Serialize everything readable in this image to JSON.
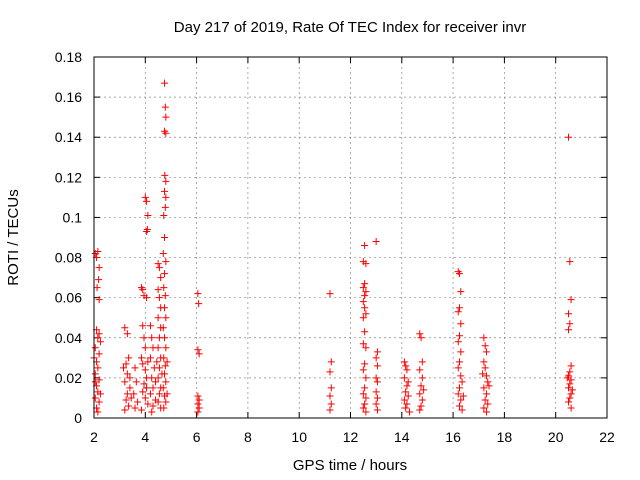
{
  "chart_data": {
    "type": "scatter",
    "title": "Day 217 of 2019, Rate Of TEC Index for receiver invr",
    "xlabel": "GPS time / hours",
    "ylabel": "ROTI / TECUs",
    "xlim": [
      2,
      22
    ],
    "ylim": [
      0,
      0.18
    ],
    "xticks": [
      2,
      4,
      6,
      8,
      10,
      12,
      14,
      16,
      18,
      20,
      22
    ],
    "yticks": [
      0,
      0.02,
      0.04,
      0.06,
      0.08,
      0.1,
      0.12,
      0.14,
      0.16,
      0.18
    ],
    "ytick_labels": [
      "0",
      "0.02",
      "0.04",
      "0.06",
      "0.08",
      "0.1",
      "0.12",
      "0.14",
      "0.16",
      "0.18"
    ],
    "grid": true,
    "marker": "+",
    "color": "#ff0000",
    "series": [
      {
        "name": "ROTI",
        "points": [
          [
            2.05,
            0.082
          ],
          [
            2.1,
            0.08
          ],
          [
            2.15,
            0.083
          ],
          [
            2.2,
            0.075
          ],
          [
            2.18,
            0.069
          ],
          [
            2.12,
            0.065
          ],
          [
            2.2,
            0.059
          ],
          [
            2.1,
            0.044
          ],
          [
            2.2,
            0.042
          ],
          [
            2.15,
            0.04
          ],
          [
            2.05,
            0.035
          ],
          [
            2.2,
            0.032
          ],
          [
            2.1,
            0.028
          ],
          [
            2.15,
            0.025
          ],
          [
            2.05,
            0.022
          ],
          [
            2.2,
            0.019
          ],
          [
            2.1,
            0.016
          ],
          [
            2.15,
            0.013
          ],
          [
            2.05,
            0.01
          ],
          [
            2.2,
            0.008
          ],
          [
            2.1,
            0.005
          ],
          [
            2.15,
            0.003
          ],
          [
            2.05,
            0.018
          ],
          [
            2.25,
            0.012
          ],
          [
            2.0,
            0.03
          ],
          [
            2.25,
            0.038
          ],
          [
            3.2,
            0.045
          ],
          [
            3.3,
            0.042
          ],
          [
            3.35,
            0.03
          ],
          [
            3.25,
            0.027
          ],
          [
            3.3,
            0.022
          ],
          [
            3.2,
            0.018
          ],
          [
            3.4,
            0.015
          ],
          [
            3.3,
            0.012
          ],
          [
            3.25,
            0.009
          ],
          [
            3.35,
            0.006
          ],
          [
            3.2,
            0.004
          ],
          [
            3.4,
            0.02
          ],
          [
            3.45,
            0.01
          ],
          [
            3.15,
            0.025
          ],
          [
            3.6,
            0.025
          ],
          [
            3.65,
            0.018
          ],
          [
            3.55,
            0.012
          ],
          [
            3.7,
            0.008
          ],
          [
            3.6,
            0.005
          ],
          [
            3.85,
            0.065
          ],
          [
            3.9,
            0.064
          ],
          [
            3.95,
            0.061
          ],
          [
            4.05,
            0.06
          ],
          [
            3.9,
            0.046
          ],
          [
            3.95,
            0.04
          ],
          [
            4.0,
            0.035
          ],
          [
            3.85,
            0.03
          ],
          [
            3.9,
            0.027
          ],
          [
            4.0,
            0.024
          ],
          [
            4.05,
            0.02
          ],
          [
            3.95,
            0.017
          ],
          [
            3.9,
            0.013
          ],
          [
            4.0,
            0.01
          ],
          [
            4.1,
            0.007
          ],
          [
            3.85,
            0.004
          ],
          [
            4.05,
            0.015
          ],
          [
            4.1,
            0.028
          ],
          [
            4.0,
            0.11
          ],
          [
            4.05,
            0.108
          ],
          [
            4.1,
            0.101
          ],
          [
            4.08,
            0.094
          ],
          [
            4.05,
            0.093
          ],
          [
            4.2,
            0.046
          ],
          [
            4.25,
            0.04
          ],
          [
            4.3,
            0.035
          ],
          [
            4.2,
            0.03
          ],
          [
            4.35,
            0.025
          ],
          [
            4.25,
            0.02
          ],
          [
            4.3,
            0.015
          ],
          [
            4.2,
            0.012
          ],
          [
            4.4,
            0.009
          ],
          [
            4.3,
            0.006
          ],
          [
            4.25,
            0.003
          ],
          [
            4.4,
            0.018
          ],
          [
            4.5,
            0.077
          ],
          [
            4.55,
            0.075
          ],
          [
            4.6,
            0.07
          ],
          [
            4.5,
            0.064
          ],
          [
            4.55,
            0.06
          ],
          [
            4.6,
            0.055
          ],
          [
            4.5,
            0.05
          ],
          [
            4.6,
            0.045
          ],
          [
            4.55,
            0.04
          ],
          [
            4.5,
            0.035
          ],
          [
            4.6,
            0.03
          ],
          [
            4.55,
            0.025
          ],
          [
            4.5,
            0.02
          ],
          [
            4.6,
            0.015
          ],
          [
            4.55,
            0.012
          ],
          [
            4.5,
            0.008
          ],
          [
            4.6,
            0.005
          ],
          [
            4.45,
            0.028
          ],
          [
            4.65,
            0.022
          ],
          [
            4.75,
            0.167
          ],
          [
            4.78,
            0.155
          ],
          [
            4.8,
            0.15
          ],
          [
            4.75,
            0.143
          ],
          [
            4.8,
            0.142
          ],
          [
            4.76,
            0.121
          ],
          [
            4.8,
            0.118
          ],
          [
            4.75,
            0.113
          ],
          [
            4.8,
            0.11
          ],
          [
            4.78,
            0.105
          ],
          [
            4.72,
            0.101
          ],
          [
            4.75,
            0.09
          ],
          [
            4.7,
            0.082
          ],
          [
            4.8,
            0.078
          ],
          [
            4.75,
            0.072
          ],
          [
            4.72,
            0.065
          ],
          [
            4.78,
            0.061
          ],
          [
            4.75,
            0.055
          ],
          [
            4.8,
            0.05
          ],
          [
            4.7,
            0.045
          ],
          [
            4.75,
            0.04
          ],
          [
            4.8,
            0.035
          ],
          [
            4.72,
            0.03
          ],
          [
            4.78,
            0.026
          ],
          [
            4.75,
            0.022
          ],
          [
            4.8,
            0.018
          ],
          [
            4.7,
            0.015
          ],
          [
            4.75,
            0.011
          ],
          [
            4.8,
            0.008
          ],
          [
            4.72,
            0.005
          ],
          [
            4.85,
            0.028
          ],
          [
            4.85,
            0.012
          ],
          [
            6.05,
            0.062
          ],
          [
            6.08,
            0.057
          ],
          [
            6.05,
            0.034
          ],
          [
            6.1,
            0.032
          ],
          [
            6.05,
            0.011
          ],
          [
            6.1,
            0.009
          ],
          [
            6.05,
            0.007
          ],
          [
            6.1,
            0.005
          ],
          [
            6.05,
            0.003
          ],
          [
            11.2,
            0.062
          ],
          [
            11.25,
            0.028
          ],
          [
            11.2,
            0.023
          ],
          [
            11.25,
            0.015
          ],
          [
            11.2,
            0.011
          ],
          [
            11.25,
            0.007
          ],
          [
            11.2,
            0.004
          ],
          [
            12.55,
            0.086
          ],
          [
            12.5,
            0.078
          ],
          [
            12.6,
            0.077
          ],
          [
            12.55,
            0.067
          ],
          [
            12.5,
            0.065
          ],
          [
            12.6,
            0.063
          ],
          [
            12.55,
            0.061
          ],
          [
            12.5,
            0.058
          ],
          [
            12.55,
            0.055
          ],
          [
            12.6,
            0.052
          ],
          [
            12.5,
            0.05
          ],
          [
            12.55,
            0.043
          ],
          [
            12.5,
            0.037
          ],
          [
            12.6,
            0.035
          ],
          [
            12.55,
            0.027
          ],
          [
            12.5,
            0.024
          ],
          [
            12.6,
            0.02
          ],
          [
            12.55,
            0.015
          ],
          [
            12.5,
            0.012
          ],
          [
            12.6,
            0.01
          ],
          [
            12.55,
            0.007
          ],
          [
            12.5,
            0.005
          ],
          [
            12.6,
            0.003
          ],
          [
            13.0,
            0.088
          ],
          [
            13.05,
            0.033
          ],
          [
            13.0,
            0.03
          ],
          [
            13.05,
            0.026
          ],
          [
            13.0,
            0.02
          ],
          [
            13.05,
            0.018
          ],
          [
            13.0,
            0.013
          ],
          [
            13.05,
            0.01
          ],
          [
            13.0,
            0.007
          ],
          [
            13.05,
            0.004
          ],
          [
            14.1,
            0.028
          ],
          [
            14.15,
            0.026
          ],
          [
            14.2,
            0.024
          ],
          [
            14.1,
            0.02
          ],
          [
            14.2,
            0.016
          ],
          [
            14.15,
            0.013
          ],
          [
            14.25,
            0.011
          ],
          [
            14.1,
            0.009
          ],
          [
            14.2,
            0.007
          ],
          [
            14.15,
            0.005
          ],
          [
            14.3,
            0.003
          ],
          [
            14.25,
            0.018
          ],
          [
            14.7,
            0.042
          ],
          [
            14.75,
            0.04
          ],
          [
            14.8,
            0.028
          ],
          [
            14.7,
            0.024
          ],
          [
            14.8,
            0.02
          ],
          [
            14.75,
            0.016
          ],
          [
            14.7,
            0.012
          ],
          [
            14.8,
            0.009
          ],
          [
            14.75,
            0.006
          ],
          [
            14.7,
            0.004
          ],
          [
            14.85,
            0.014
          ],
          [
            16.2,
            0.073
          ],
          [
            16.25,
            0.072
          ],
          [
            16.3,
            0.063
          ],
          [
            16.25,
            0.055
          ],
          [
            16.2,
            0.053
          ],
          [
            16.3,
            0.047
          ],
          [
            16.25,
            0.041
          ],
          [
            16.2,
            0.038
          ],
          [
            16.3,
            0.033
          ],
          [
            16.25,
            0.028
          ],
          [
            16.2,
            0.025
          ],
          [
            16.3,
            0.021
          ],
          [
            16.35,
            0.018
          ],
          [
            16.25,
            0.015
          ],
          [
            16.2,
            0.012
          ],
          [
            16.3,
            0.009
          ],
          [
            16.25,
            0.006
          ],
          [
            16.35,
            0.004
          ],
          [
            16.4,
            0.011
          ],
          [
            17.2,
            0.04
          ],
          [
            17.25,
            0.036
          ],
          [
            17.3,
            0.033
          ],
          [
            17.2,
            0.028
          ],
          [
            17.25,
            0.025
          ],
          [
            17.3,
            0.021
          ],
          [
            17.35,
            0.018
          ],
          [
            17.2,
            0.015
          ],
          [
            17.3,
            0.012
          ],
          [
            17.25,
            0.009
          ],
          [
            17.35,
            0.007
          ],
          [
            17.2,
            0.005
          ],
          [
            17.3,
            0.003
          ],
          [
            17.4,
            0.016
          ],
          [
            17.15,
            0.022
          ],
          [
            20.5,
            0.14
          ],
          [
            20.55,
            0.078
          ],
          [
            20.6,
            0.059
          ],
          [
            20.5,
            0.052
          ],
          [
            20.55,
            0.047
          ],
          [
            20.5,
            0.044
          ],
          [
            20.6,
            0.026
          ],
          [
            20.55,
            0.023
          ],
          [
            20.5,
            0.021
          ],
          [
            20.6,
            0.019
          ],
          [
            20.55,
            0.017
          ],
          [
            20.5,
            0.015
          ],
          [
            20.6,
            0.012
          ],
          [
            20.55,
            0.01
          ],
          [
            20.5,
            0.008
          ],
          [
            20.6,
            0.005
          ],
          [
            20.45,
            0.02
          ],
          [
            20.65,
            0.014
          ]
        ]
      }
    ]
  }
}
